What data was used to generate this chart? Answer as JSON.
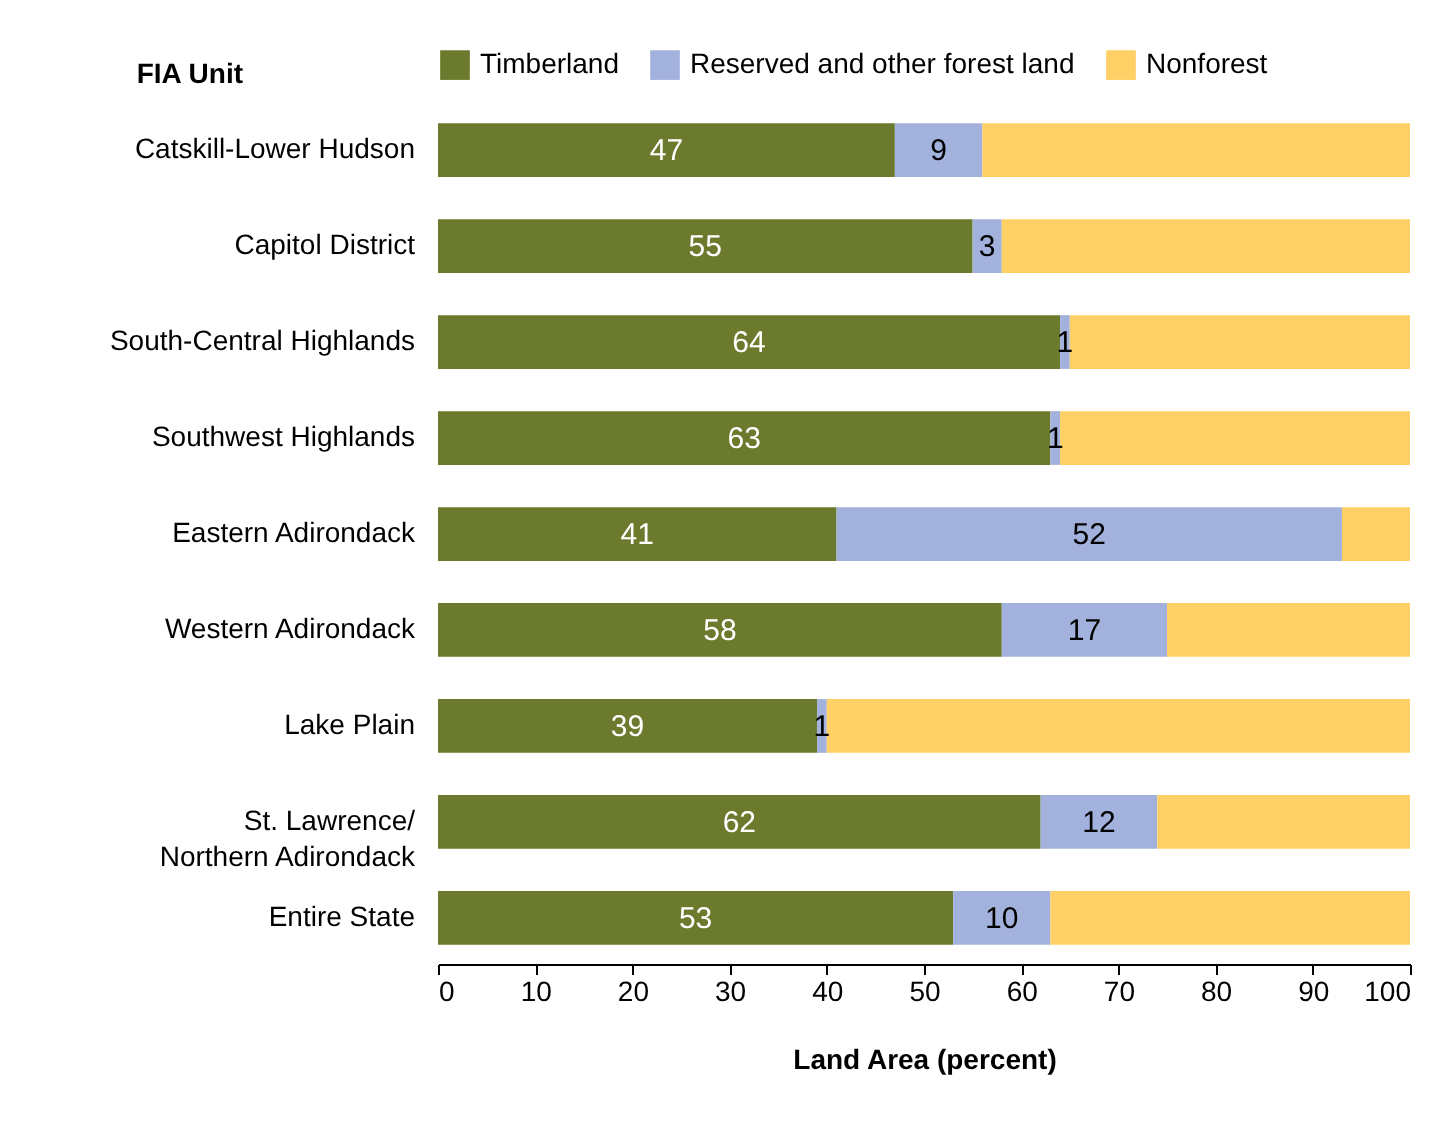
{
  "chart_data": {
    "type": "bar",
    "orientation": "horizontal",
    "stacked": true,
    "ylabel": "FIA Unit",
    "xlabel": "Land Area (percent)",
    "categories": [
      "Catskill-Lower Hudson",
      "Capitol District",
      "South-Central Highlands",
      "Southwest Highlands",
      "Eastern Adirondack",
      "Western Adirondack",
      "Lake Plain",
      "St. Lawrence/\nNorthern Adirondack",
      "Entire State"
    ],
    "series": [
      {
        "name": "Timberland",
        "color": "#6b7a2c",
        "values": [
          47,
          55,
          64,
          63,
          41,
          58,
          39,
          62,
          53
        ],
        "value_labels": [
          "47",
          "55",
          "64",
          "63",
          "41",
          "58",
          "39",
          "62",
          "53"
        ]
      },
      {
        "name": "Reserved and other forest land",
        "color": "#a3b2dc",
        "values": [
          9,
          3,
          1,
          1,
          52,
          17,
          1,
          12,
          10
        ],
        "value_labels": [
          "9",
          "3",
          "1",
          "1",
          "52",
          "17",
          "1",
          "12",
          "10"
        ]
      },
      {
        "name": "Nonforest",
        "color": "#ffd066",
        "values": [
          44,
          42,
          35,
          36,
          7,
          25,
          60,
          26,
          37
        ]
      }
    ],
    "xlim": [
      0,
      100
    ],
    "xticks": [
      0,
      10,
      20,
      30,
      40,
      50,
      60,
      70,
      80,
      90,
      100
    ],
    "grid": false,
    "legend": "top"
  }
}
